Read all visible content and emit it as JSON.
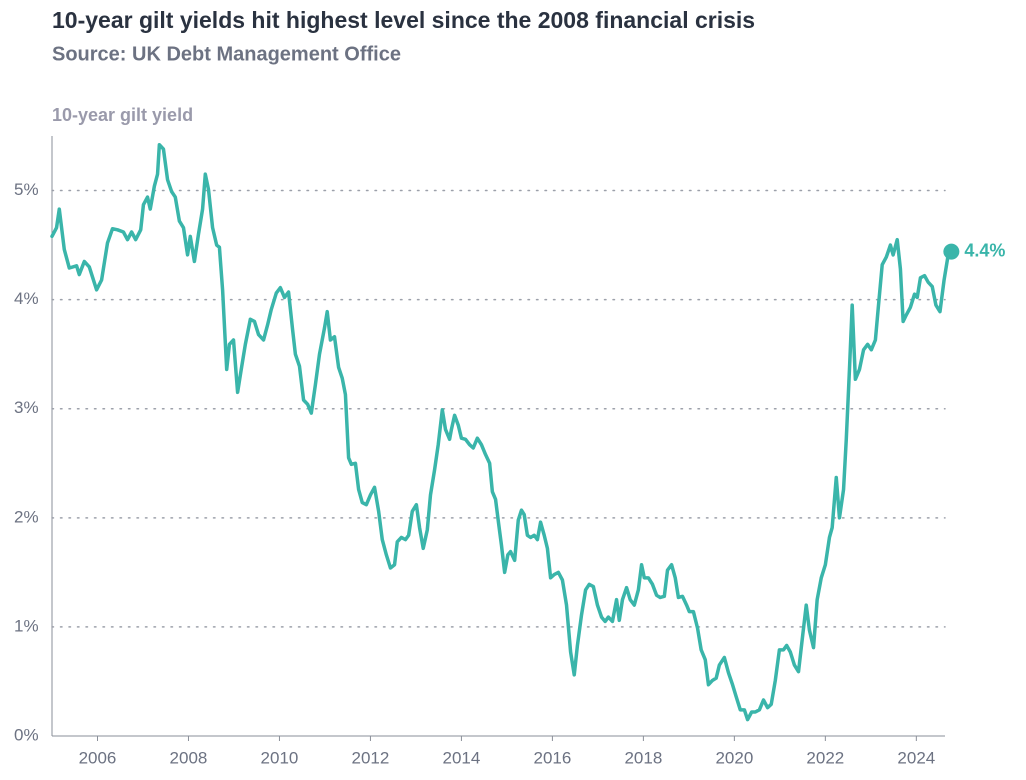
{
  "chart_data": {
    "type": "line",
    "title": "10-year gilt yields hit highest level since the 2008 financial crisis",
    "subtitle": "Source: UK Debt Management Office",
    "y_axis_label": "10-year gilt yield",
    "color": "#3ab5aa",
    "grid": true,
    "xlim": [
      2005,
      2024.85
    ],
    "ylim": [
      0,
      5.5
    ],
    "xticks": [
      2006,
      2008,
      2010,
      2012,
      2014,
      2016,
      2018,
      2020,
      2022,
      2024
    ],
    "yticks": [
      {
        "value": 0,
        "label": "0%"
      },
      {
        "value": 1,
        "label": "1%"
      },
      {
        "value": 2,
        "label": "2%"
      },
      {
        "value": 3,
        "label": "3%"
      },
      {
        "value": 4,
        "label": "4%"
      },
      {
        "value": 5,
        "label": "5%"
      }
    ],
    "end_label": "4.4%",
    "x": [
      2005.0,
      2005.1,
      2005.16,
      2005.27,
      2005.38,
      2005.54,
      2005.6,
      2005.71,
      2005.82,
      2005.98,
      2006.09,
      2006.22,
      2006.33,
      2006.44,
      2006.57,
      2006.66,
      2006.75,
      2006.84,
      2006.95,
      2007.01,
      2007.1,
      2007.16,
      2007.25,
      2007.32,
      2007.36,
      2007.45,
      2007.54,
      2007.63,
      2007.71,
      2007.8,
      2007.89,
      2007.98,
      2008.04,
      2008.13,
      2008.22,
      2008.31,
      2008.37,
      2008.44,
      2008.53,
      2008.62,
      2008.68,
      2008.75,
      2008.84,
      2008.9,
      2008.99,
      2009.08,
      2009.16,
      2009.25,
      2009.36,
      2009.45,
      2009.54,
      2009.65,
      2009.74,
      2009.82,
      2009.93,
      2010.02,
      2010.11,
      2010.2,
      2010.29,
      2010.35,
      2010.44,
      2010.53,
      2010.62,
      2010.7,
      2010.79,
      2010.88,
      2010.99,
      2011.05,
      2011.12,
      2011.21,
      2011.3,
      2011.38,
      2011.45,
      2011.52,
      2011.58,
      2011.67,
      2011.74,
      2011.82,
      2011.91,
      2012.0,
      2012.09,
      2012.18,
      2012.26,
      2012.35,
      2012.44,
      2012.53,
      2012.59,
      2012.68,
      2012.77,
      2012.84,
      2012.92,
      2013.01,
      2013.08,
      2013.16,
      2013.25,
      2013.32,
      2013.41,
      2013.49,
      2013.58,
      2013.65,
      2013.74,
      2013.78,
      2013.85,
      2013.93,
      2014.0,
      2014.09,
      2014.18,
      2014.26,
      2014.35,
      2014.44,
      2014.53,
      2014.62,
      2014.68,
      2014.75,
      2014.82,
      2014.88,
      2014.95,
      2015.02,
      2015.08,
      2015.17,
      2015.25,
      2015.32,
      2015.38,
      2015.45,
      2015.52,
      2015.6,
      2015.67,
      2015.74,
      2015.82,
      2015.89,
      2015.96,
      2016.04,
      2016.13,
      2016.22,
      2016.31,
      2016.4,
      2016.48,
      2016.55,
      2016.64,
      2016.73,
      2016.81,
      2016.9,
      2016.99,
      2017.08,
      2017.16,
      2017.23,
      2017.32,
      2017.41,
      2017.47,
      2017.54,
      2017.63,
      2017.71,
      2017.8,
      2017.89,
      2017.96,
      2018.02,
      2018.11,
      2018.2,
      2018.29,
      2018.37,
      2018.46,
      2018.53,
      2018.62,
      2018.7,
      2018.77,
      2018.86,
      2018.95,
      2019.01,
      2019.1,
      2019.19,
      2019.27,
      2019.36,
      2019.43,
      2019.52,
      2019.6,
      2019.67,
      2019.78,
      2019.87,
      2019.96,
      2020.04,
      2020.13,
      2020.22,
      2020.29,
      2020.38,
      2020.46,
      2020.55,
      2020.64,
      2020.73,
      2020.81,
      2020.9,
      2020.99,
      2021.08,
      2021.15,
      2021.23,
      2021.32,
      2021.41,
      2021.49,
      2021.58,
      2021.65,
      2021.74,
      2021.82,
      2021.91,
      2022.0,
      2022.09,
      2022.15,
      2022.24,
      2022.31,
      2022.4,
      2022.46,
      2022.53,
      2022.59,
      2022.66,
      2022.75,
      2022.84,
      2022.93,
      2023.01,
      2023.1,
      2023.16,
      2023.25,
      2023.34,
      2023.43,
      2023.49,
      2023.58,
      2023.65,
      2023.71,
      2023.78,
      2023.87,
      2023.96,
      2024.02,
      2024.09,
      2024.18,
      2024.26,
      2024.35,
      2024.43,
      2024.52,
      2024.61,
      2024.7,
      2024.77
    ],
    "values": [
      4.58,
      4.66,
      4.83,
      4.46,
      4.29,
      4.31,
      4.23,
      4.35,
      4.3,
      4.09,
      4.18,
      4.52,
      4.65,
      4.64,
      4.62,
      4.55,
      4.62,
      4.55,
      4.64,
      4.87,
      4.94,
      4.83,
      5.04,
      5.15,
      5.42,
      5.38,
      5.1,
      4.99,
      4.94,
      4.72,
      4.66,
      4.41,
      4.58,
      4.35,
      4.6,
      4.83,
      5.15,
      5.01,
      4.66,
      4.5,
      4.48,
      4.09,
      3.36,
      3.59,
      3.63,
      3.15,
      3.36,
      3.59,
      3.82,
      3.8,
      3.68,
      3.63,
      3.77,
      3.91,
      4.06,
      4.11,
      4.02,
      4.07,
      3.72,
      3.5,
      3.39,
      3.08,
      3.04,
      2.96,
      3.22,
      3.5,
      3.74,
      3.89,
      3.63,
      3.66,
      3.38,
      3.28,
      3.13,
      2.55,
      2.49,
      2.5,
      2.26,
      2.14,
      2.12,
      2.21,
      2.28,
      2.06,
      1.8,
      1.66,
      1.54,
      1.57,
      1.78,
      1.82,
      1.8,
      1.84,
      2.06,
      2.12,
      1.91,
      1.72,
      1.89,
      2.21,
      2.44,
      2.67,
      2.99,
      2.81,
      2.72,
      2.81,
      2.94,
      2.85,
      2.73,
      2.72,
      2.67,
      2.64,
      2.73,
      2.67,
      2.58,
      2.5,
      2.24,
      2.17,
      1.94,
      1.75,
      1.5,
      1.66,
      1.69,
      1.61,
      1.98,
      2.07,
      2.03,
      1.84,
      1.82,
      1.84,
      1.8,
      1.96,
      1.84,
      1.72,
      1.45,
      1.48,
      1.5,
      1.43,
      1.2,
      0.77,
      0.56,
      0.83,
      1.11,
      1.34,
      1.39,
      1.37,
      1.2,
      1.09,
      1.05,
      1.09,
      1.05,
      1.25,
      1.06,
      1.25,
      1.36,
      1.25,
      1.2,
      1.34,
      1.57,
      1.45,
      1.45,
      1.39,
      1.29,
      1.27,
      1.28,
      1.52,
      1.57,
      1.45,
      1.27,
      1.28,
      1.2,
      1.14,
      1.14,
      0.99,
      0.79,
      0.7,
      0.47,
      0.51,
      0.53,
      0.65,
      0.72,
      0.58,
      0.47,
      0.36,
      0.24,
      0.24,
      0.15,
      0.22,
      0.22,
      0.24,
      0.33,
      0.26,
      0.29,
      0.51,
      0.79,
      0.79,
      0.83,
      0.77,
      0.65,
      0.59,
      0.88,
      1.2,
      0.97,
      0.81,
      1.25,
      1.45,
      1.57,
      1.82,
      1.91,
      2.37,
      2.0,
      2.26,
      2.72,
      3.36,
      3.95,
      3.27,
      3.36,
      3.54,
      3.59,
      3.54,
      3.63,
      3.91,
      4.32,
      4.39,
      4.5,
      4.41,
      4.55,
      4.28,
      3.8,
      3.86,
      3.93,
      4.05,
      4.02,
      4.2,
      4.22,
      4.16,
      4.12,
      3.95,
      3.89,
      4.18,
      4.41,
      4.44
    ]
  }
}
